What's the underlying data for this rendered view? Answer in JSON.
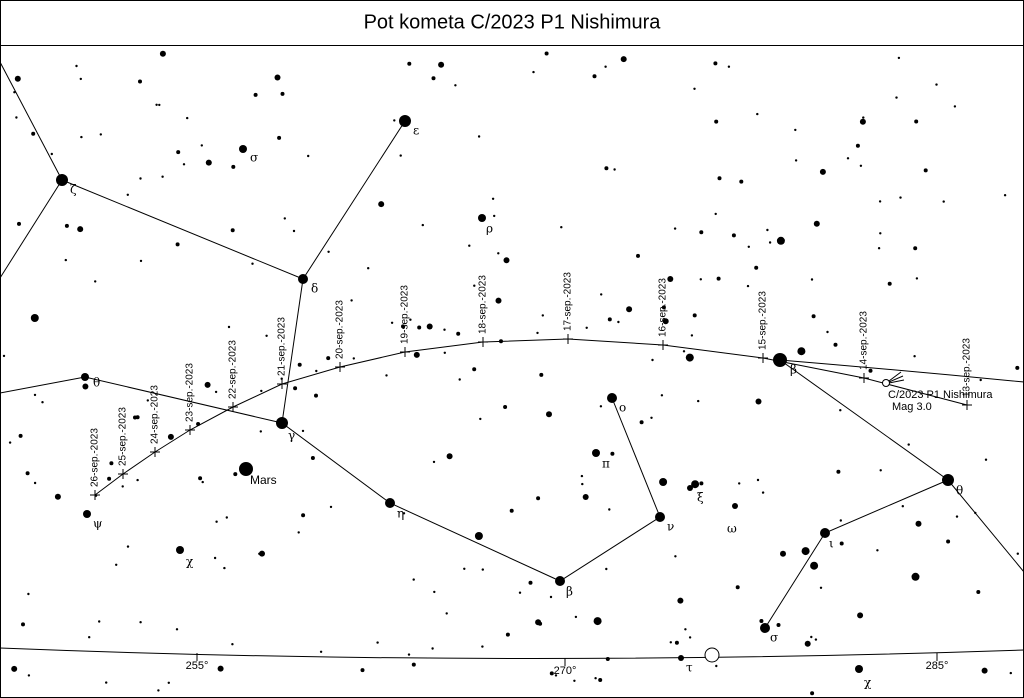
{
  "title": "Pot kometa C/2023 P1 Nishimura",
  "path": {
    "dates": [
      "26-sep.-2023",
      "25-sep.-2023",
      "24-sep.-2023",
      "23-sep.-2023",
      "22-sep.-2023",
      "21-sep.-2023",
      "20-sep.-2023",
      "19-sep.-2023",
      "18-sep.-2023",
      "17-sep.-2023",
      "16-sep.-2023",
      "15-sep.-2023",
      "14-sep.-2023",
      "13-sep.-2023"
    ]
  },
  "comet": {
    "name": "C/2023 P1 Nishimura",
    "magnitude_label": "Mag 3.0"
  },
  "planet": {
    "label": "Mars"
  },
  "star_labels": [
    "ε",
    "σ",
    "ζ",
    "ρ",
    "δ",
    "θ",
    "γ",
    "β",
    "ο",
    "π",
    "ξ",
    "ω",
    "ν",
    "η",
    "ψ",
    "χ",
    "β",
    "ι",
    "θ",
    "σ",
    "τ",
    "χ"
  ],
  "ra_labels": [
    "255°",
    "270°",
    "285°"
  ]
}
